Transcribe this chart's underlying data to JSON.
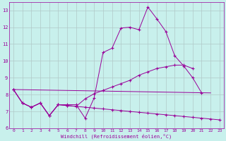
{
  "xlabel": "Windchill (Refroidissement éolien,°C)",
  "background_color": "#c8f0ec",
  "grid_color": "#b0c8c8",
  "line_color": "#990099",
  "x_values": [
    0,
    1,
    2,
    3,
    4,
    5,
    6,
    7,
    8,
    9,
    10,
    11,
    12,
    13,
    14,
    15,
    16,
    17,
    18,
    19,
    20,
    21,
    22,
    23
  ],
  "series1": [
    8.3,
    7.5,
    7.25,
    7.5,
    6.75,
    7.4,
    7.4,
    7.4,
    6.6,
    7.8,
    10.5,
    10.75,
    11.95,
    12.0,
    11.85,
    13.2,
    12.5,
    11.75,
    10.3,
    9.7,
    9.0,
    8.1,
    null,
    null
  ],
  "series2": [
    8.3,
    7.5,
    7.25,
    7.5,
    6.75,
    7.4,
    7.35,
    7.3,
    7.75,
    8.05,
    8.25,
    8.45,
    8.65,
    8.85,
    9.15,
    9.35,
    9.55,
    9.65,
    9.75,
    9.75,
    9.55,
    null,
    null,
    null
  ],
  "series3": [
    8.3,
    7.5,
    7.25,
    7.5,
    6.75,
    7.4,
    7.35,
    7.3,
    7.25,
    7.2,
    7.15,
    7.1,
    7.05,
    7.0,
    6.95,
    6.9,
    6.85,
    6.8,
    6.75,
    6.7,
    6.65,
    6.6,
    6.55,
    6.5
  ],
  "series4_x": [
    0,
    22
  ],
  "series4_y": [
    8.3,
    8.1
  ],
  "ylim": [
    6.0,
    13.5
  ],
  "xlim_min": -0.5,
  "xlim_max": 23.5,
  "yticks": [
    6,
    7,
    8,
    9,
    10,
    11,
    12,
    13
  ],
  "xticks": [
    0,
    1,
    2,
    3,
    4,
    5,
    6,
    7,
    8,
    9,
    10,
    11,
    12,
    13,
    14,
    15,
    16,
    17,
    18,
    19,
    20,
    21,
    22,
    23
  ]
}
